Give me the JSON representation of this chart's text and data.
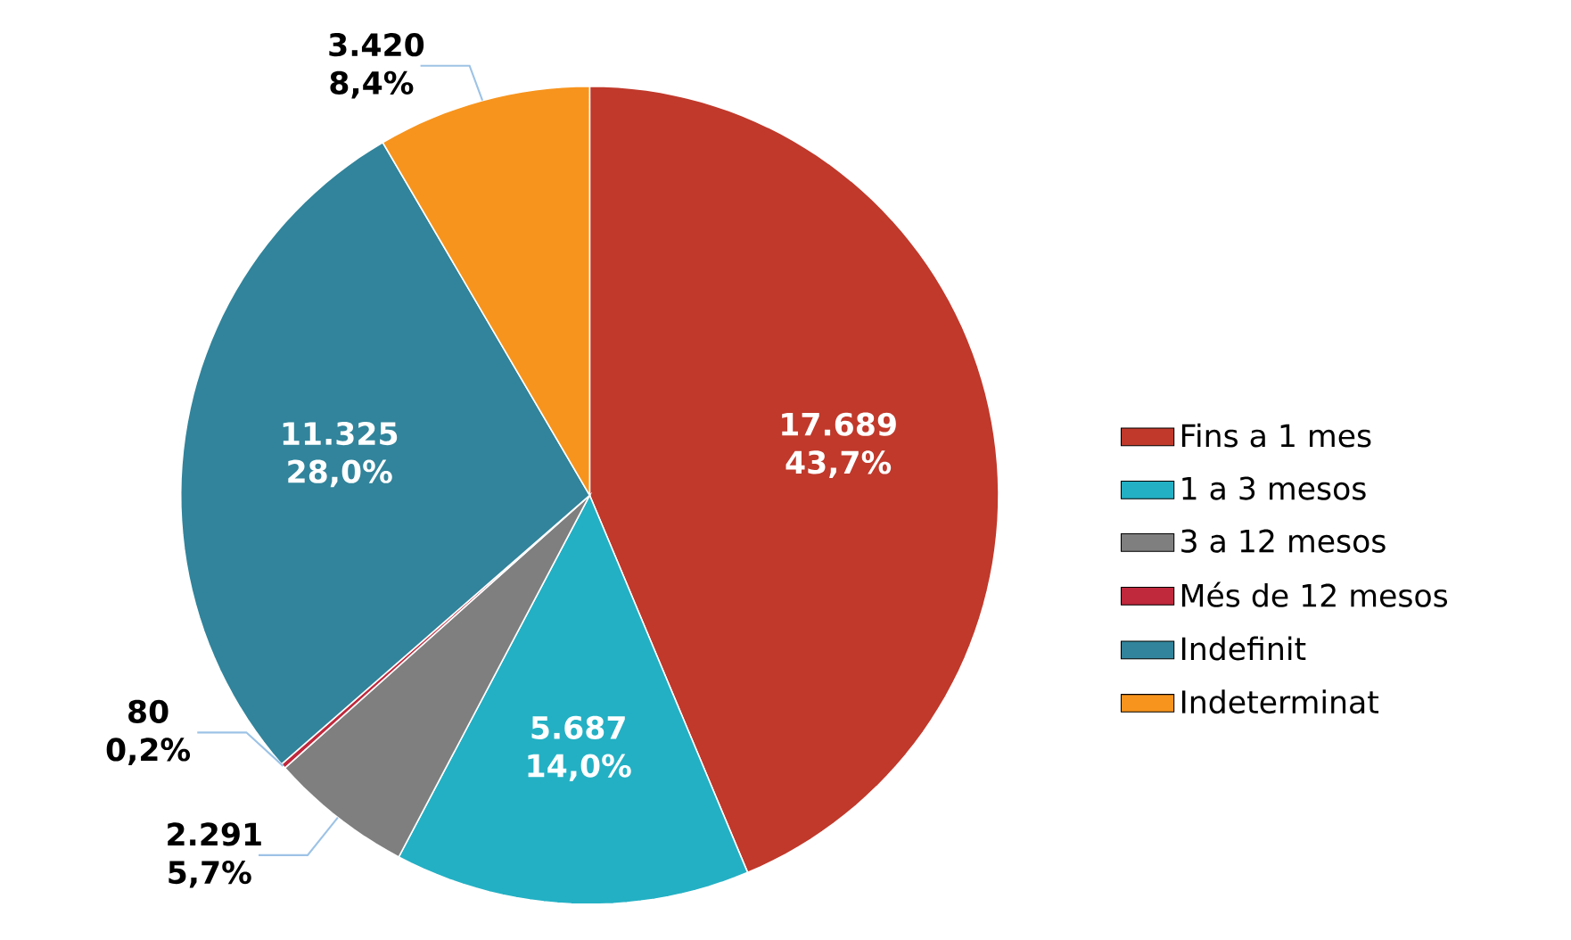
{
  "chart_data": {
    "type": "pie",
    "categories": [
      "Fins a 1 mes",
      "1 a 3 mesos",
      "3 a 12 mesos",
      "Més de 12 mesos",
      "Indefinit",
      "Indeterminat"
    ],
    "values": [
      17689,
      5687,
      2291,
      80,
      11325,
      3420
    ],
    "colors": [
      "#c0392b",
      "#23b0c4",
      "#7f7f7f",
      "#c0283c",
      "#31849b",
      "#f7941d"
    ],
    "value_labels": [
      "17.689 43,7%",
      "5.687 14,0%",
      "2.291 5,7%",
      "80 0,2%",
      "11.325 28,0%",
      "3.420 8,4%"
    ],
    "legend": "right"
  }
}
